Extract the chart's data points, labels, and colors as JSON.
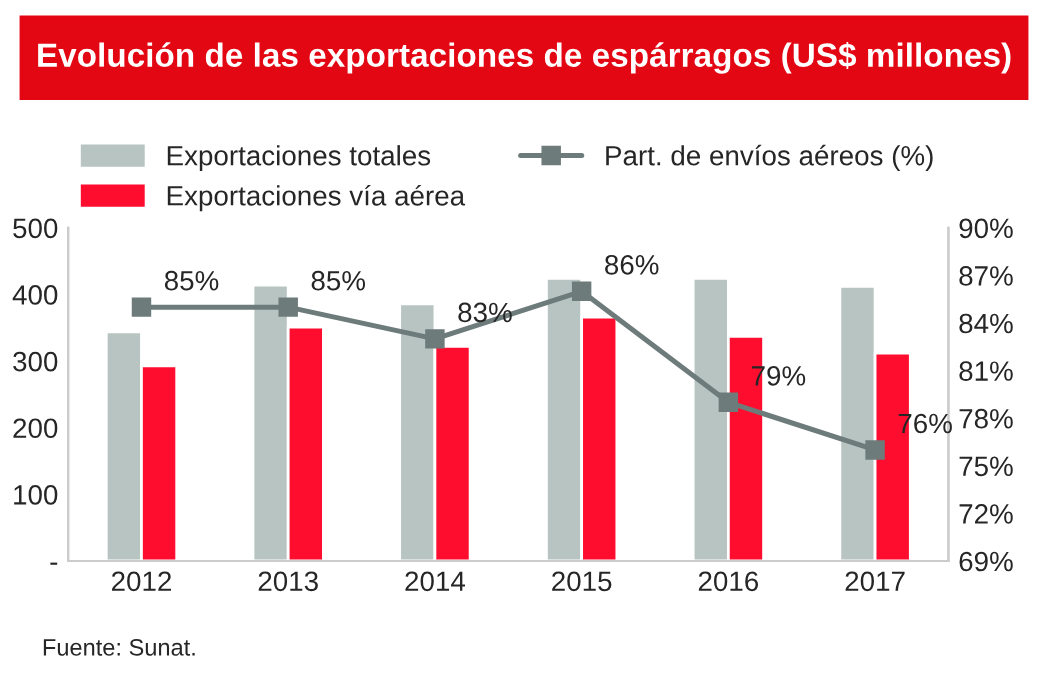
{
  "chart_data": {
    "type": "bar",
    "title": "Evolución de las exportaciones de espárragos (US$ millones)",
    "categories": [
      "2012",
      "2013",
      "2014",
      "2015",
      "2016",
      "2017"
    ],
    "series": [
      {
        "name": "Exportaciones totales",
        "color": "#b7c4c1",
        "values": [
          344,
          414,
          386,
          424,
          424,
          412
        ]
      },
      {
        "name": "Exportaciones vía aérea",
        "color": "#ff0d2f",
        "values": [
          293,
          351,
          322,
          366,
          337,
          312
        ]
      },
      {
        "name": "Part. de envíos aéreos (%)",
        "type": "line",
        "axis": "y2",
        "color": "#6e7b7b",
        "marker": "square",
        "values": [
          85,
          85,
          83,
          86,
          79,
          76
        ],
        "value_labels": [
          "85%",
          "85%",
          "83%",
          "86%",
          "79%",
          "76%"
        ]
      }
    ],
    "ylim": [
      0,
      500
    ],
    "yticks": [
      {
        "value": 0,
        "label": "-"
      },
      100,
      200,
      300,
      400,
      500
    ],
    "y2lim": [
      69,
      90
    ],
    "y2ticks": [
      {
        "value": 69,
        "label": "69%"
      },
      {
        "value": 72,
        "label": "72%"
      },
      {
        "value": 75,
        "label": "75%"
      },
      {
        "value": 78,
        "label": "78%"
      },
      {
        "value": 81,
        "label": "81%"
      },
      {
        "value": 84,
        "label": "84%"
      },
      {
        "value": 87,
        "label": "87%"
      },
      {
        "value": 90,
        "label": "90%"
      }
    ],
    "legend": "top",
    "annotations": [
      "Fuente: Sunat."
    ]
  }
}
